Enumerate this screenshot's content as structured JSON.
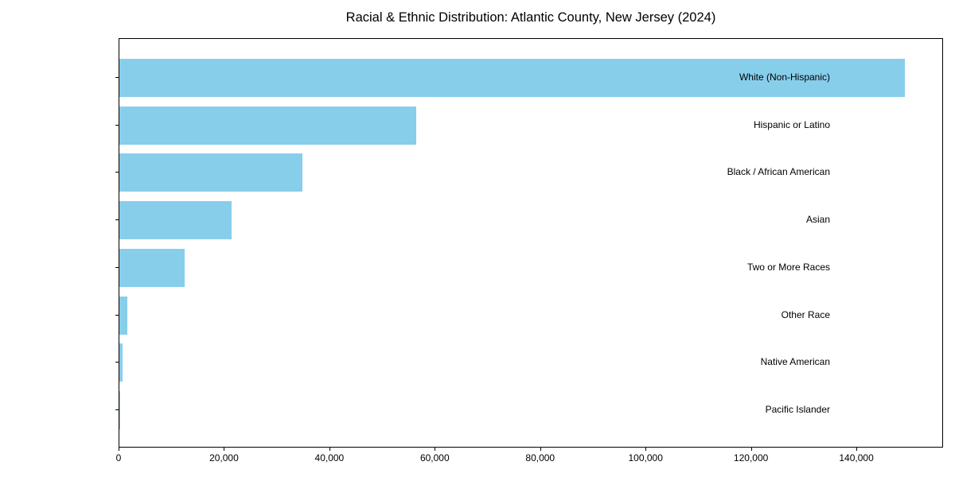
{
  "chart_data": {
    "type": "bar",
    "orientation": "horizontal",
    "title": "Racial & Ethnic Distribution: Atlantic County, New Jersey (2024)",
    "xlabel": "",
    "ylabel": "",
    "categories": [
      "White (Non-Hispanic)",
      "Hispanic or Latino",
      "Black / African American",
      "Asian",
      "Two or More Races",
      "Other Race",
      "Native American",
      "Pacific Islander"
    ],
    "values": [
      149000,
      56300,
      34700,
      21300,
      12400,
      1500,
      600,
      100
    ],
    "xlim": [
      0,
      156450
    ],
    "xticks": [
      0,
      20000,
      40000,
      60000,
      80000,
      100000,
      120000,
      140000
    ],
    "xtick_labels": [
      "0",
      "20,000",
      "40,000",
      "60,000",
      "80,000",
      "100,000",
      "120,000",
      "140,000"
    ],
    "bar_color": "#87CEEB",
    "axis_color": "#000000",
    "background_color": "#ffffff",
    "grid": false,
    "legend": null
  }
}
